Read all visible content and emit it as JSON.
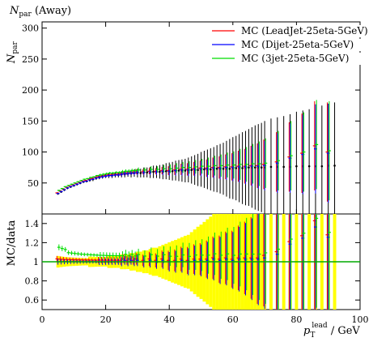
{
  "chart_data": {
    "type": "scatter",
    "title": "N_par (Away)",
    "title_main": "N",
    "title_sub": "par",
    "title_suffix": " (Away)",
    "xlabel_main": "p",
    "xlabel_sub": "T",
    "xlabel_sup": "lead",
    "xlabel_suffix": " / GeV",
    "ylabel_top_main": "N",
    "ylabel_top_sub": "par",
    "ylabel_bottom": "MC/data",
    "xlim": [
      0,
      100
    ],
    "ylim_top": [
      0,
      310
    ],
    "ylim_ratio": [
      0.5,
      1.5
    ],
    "x_ticks": [
      0,
      20,
      40,
      60,
      80,
      100
    ],
    "y_ticks_top": [
      50,
      100,
      150,
      200,
      250,
      300
    ],
    "y_ticks_ratio": [
      0.6,
      0.8,
      1,
      1.2,
      1.4
    ],
    "legend_position": "top-right",
    "data": {
      "x": [
        5,
        6,
        7,
        8,
        9,
        10,
        11,
        12,
        13,
        14,
        15,
        16,
        17,
        18,
        19,
        20,
        21,
        22,
        23,
        24,
        25,
        26,
        27,
        28,
        29,
        30,
        31,
        32,
        33,
        34,
        35,
        36,
        37,
        38,
        39,
        40,
        41,
        42,
        43,
        44,
        45,
        46,
        47,
        48,
        49,
        50,
        51,
        52,
        53,
        54,
        55,
        56,
        57,
        58,
        59,
        60,
        61,
        62,
        63,
        64,
        65,
        66,
        67,
        68,
        69,
        70,
        72,
        74,
        76,
        78,
        80,
        82,
        84,
        86,
        88,
        90,
        92
      ],
      "y": [
        33,
        36,
        39,
        42,
        44,
        46,
        48,
        50,
        52,
        53,
        55,
        56,
        58,
        59,
        60,
        61,
        62,
        62,
        63,
        63,
        64,
        64,
        65,
        65,
        66,
        66,
        66,
        67,
        67,
        67,
        68,
        68,
        68,
        68,
        69,
        69,
        69,
        70,
        70,
        70,
        70,
        71,
        71,
        71,
        71,
        72,
        72,
        72,
        72,
        72,
        73,
        73,
        73,
        73,
        73,
        74,
        74,
        74,
        74,
        74,
        75,
        75,
        75,
        75,
        75,
        75,
        76,
        76,
        76,
        76,
        77,
        77,
        77,
        77,
        77,
        78,
        78
      ],
      "err": [
        2,
        2,
        2,
        2,
        2,
        2,
        2,
        2,
        2,
        2,
        3,
        3,
        3,
        3,
        3,
        3,
        4,
        4,
        4,
        4,
        5,
        5,
        5,
        6,
        6,
        7,
        7,
        8,
        8,
        9,
        10,
        10,
        11,
        12,
        13,
        14,
        15,
        16,
        17,
        18,
        19,
        20,
        22,
        24,
        26,
        28,
        30,
        32,
        34,
        36,
        38,
        40,
        42,
        45,
        48,
        50,
        52,
        55,
        58,
        60,
        62,
        65,
        68,
        70,
        72,
        75,
        78,
        80,
        82,
        85,
        88,
        90,
        92,
        95,
        98,
        100,
        102
      ]
    },
    "series": [
      {
        "name": "MC (LeadJet-25eta-5GeV)",
        "color": "#ff0000",
        "x": [
          5,
          6,
          7,
          8,
          9,
          10,
          11,
          12,
          13,
          14,
          15,
          16,
          17,
          18,
          19,
          20,
          21,
          22,
          23,
          24,
          25,
          26,
          27,
          28,
          29,
          30,
          32,
          34,
          36,
          38,
          40,
          42,
          44,
          46,
          48,
          50,
          52,
          54,
          56,
          58,
          60,
          62,
          64,
          66,
          68,
          70,
          74,
          78,
          82,
          86,
          90
        ],
        "y": [
          34,
          37,
          40,
          43,
          45,
          47,
          49,
          51,
          53,
          54,
          56,
          57,
          59,
          60,
          61,
          62,
          63,
          63,
          64,
          64,
          65,
          66,
          66,
          67,
          67,
          68,
          68,
          69,
          69,
          70,
          70,
          71,
          72,
          72,
          73,
          74,
          74,
          75,
          75,
          76,
          76,
          77,
          77,
          78,
          78,
          80,
          84,
          92,
          98,
          110,
          100
        ],
        "err": [
          1,
          1,
          1,
          1,
          1,
          1,
          1,
          1,
          1,
          1,
          1,
          1,
          1,
          2,
          2,
          2,
          2,
          2,
          2,
          2,
          3,
          3,
          3,
          3,
          3,
          4,
          4,
          5,
          5,
          6,
          7,
          8,
          9,
          10,
          11,
          12,
          14,
          16,
          18,
          20,
          22,
          25,
          28,
          32,
          36,
          40,
          48,
          56,
          64,
          72,
          80
        ]
      },
      {
        "name": "MC (Dijet-25eta-5GeV)",
        "color": "#0000ff",
        "x": [
          5,
          6,
          7,
          8,
          9,
          10,
          11,
          12,
          13,
          14,
          15,
          16,
          17,
          18,
          19,
          20,
          21,
          22,
          23,
          24,
          25,
          26,
          27,
          28,
          29,
          30,
          32,
          34,
          36,
          38,
          40,
          42,
          44,
          46,
          48,
          50,
          52,
          54,
          56,
          58,
          60,
          62,
          64,
          66,
          68,
          70,
          74,
          78,
          82,
          86,
          90
        ],
        "y": [
          33,
          36,
          39,
          42,
          44,
          46,
          48,
          50,
          52,
          53,
          55,
          56,
          58,
          59,
          60,
          61,
          62,
          62,
          63,
          63,
          64,
          65,
          65,
          66,
          66,
          67,
          67,
          68,
          68,
          69,
          69,
          70,
          71,
          71,
          72,
          73,
          73,
          74,
          74,
          75,
          75,
          76,
          76,
          77,
          77,
          78,
          82,
          90,
          96,
          105,
          98
        ],
        "err": [
          1,
          1,
          1,
          1,
          1,
          1,
          1,
          1,
          1,
          1,
          1,
          1,
          1,
          2,
          2,
          2,
          2,
          2,
          2,
          2,
          3,
          3,
          3,
          3,
          3,
          4,
          4,
          5,
          5,
          6,
          7,
          8,
          9,
          10,
          11,
          12,
          14,
          16,
          18,
          20,
          22,
          25,
          28,
          32,
          36,
          40,
          48,
          56,
          64,
          72,
          80
        ]
      },
      {
        "name": "MC (3jet-25eta-5GeV)",
        "color": "#00dd00",
        "x": [
          5,
          6,
          7,
          8,
          9,
          10,
          11,
          12,
          13,
          14,
          15,
          16,
          17,
          18,
          19,
          20,
          21,
          22,
          23,
          24,
          25,
          26,
          27,
          28,
          29,
          30,
          32,
          34,
          36,
          38,
          40,
          42,
          44,
          46,
          48,
          50,
          52,
          54,
          56,
          58,
          60,
          62,
          64,
          66,
          68,
          70,
          74,
          78,
          82,
          86,
          90
        ],
        "y": [
          38,
          41,
          44,
          46,
          48,
          50,
          52,
          54,
          56,
          57,
          59,
          60,
          62,
          63,
          64,
          65,
          66,
          66,
          67,
          67,
          68,
          69,
          69,
          70,
          70,
          71,
          71,
          72,
          72,
          73,
          73,
          74,
          75,
          75,
          76,
          77,
          77,
          78,
          78,
          79,
          79,
          80,
          80,
          81,
          81,
          82,
          86,
          94,
          100,
          112,
          102
        ],
        "err": [
          1,
          1,
          1,
          1,
          1,
          1,
          1,
          1,
          1,
          1,
          1,
          1,
          1,
          2,
          2,
          2,
          2,
          2,
          2,
          2,
          3,
          3,
          3,
          3,
          3,
          4,
          4,
          5,
          5,
          6,
          7,
          8,
          9,
          10,
          11,
          12,
          14,
          16,
          18,
          20,
          22,
          25,
          28,
          32,
          36,
          40,
          48,
          56,
          64,
          72,
          80
        ]
      }
    ]
  }
}
